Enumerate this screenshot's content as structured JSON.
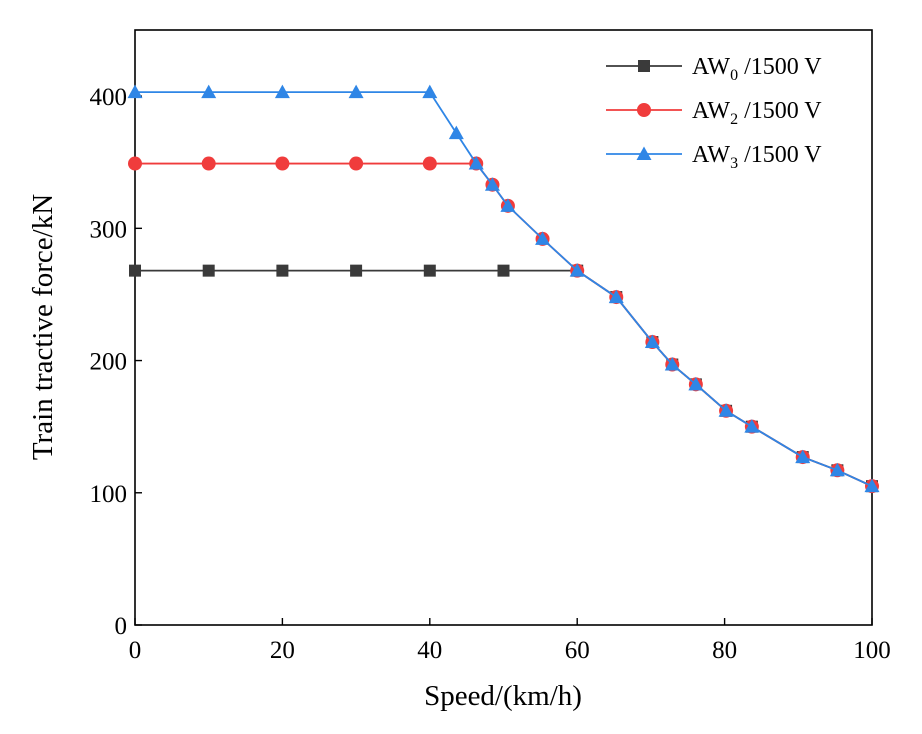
{
  "chart_data": {
    "type": "line",
    "title": "",
    "xlabel": "Speed/(km/h)",
    "ylabel": "Train tractive force/kN",
    "xlim": [
      0,
      100
    ],
    "ylim": [
      0,
      450
    ],
    "xticks": [
      0,
      20,
      40,
      60,
      80,
      100
    ],
    "yticks": [
      0,
      100,
      200,
      300,
      400
    ],
    "grid": false,
    "legend_position": "top-right",
    "series": [
      {
        "name": "AW0 /1500 V",
        "legend": {
          "base": "AW",
          "sub": "0",
          "suffix": " /1500 V"
        },
        "color": "#3a3a3a",
        "marker": "square",
        "x": [
          0,
          10,
          20,
          30,
          40,
          50,
          60,
          65.3,
          70.2,
          72.9,
          76.1,
          80.2,
          83.7,
          90.6,
          95.3,
          100
        ],
        "y": [
          268,
          268,
          268,
          268,
          268,
          268,
          268,
          248,
          214,
          197,
          182,
          162,
          150,
          127,
          117,
          105
        ]
      },
      {
        "name": "AW2 /1500 V",
        "legend": {
          "base": "AW",
          "sub": "2",
          "suffix": " /1500 V"
        },
        "color": "#f03c3c",
        "marker": "circle",
        "x": [
          0,
          10,
          20,
          30,
          40,
          46.3,
          48.5,
          50.6,
          55.3,
          60,
          65.3,
          70.2,
          72.9,
          76.1,
          80.2,
          83.7,
          90.6,
          95.3,
          100
        ],
        "y": [
          349,
          349,
          349,
          349,
          349,
          349,
          333,
          317,
          292,
          268,
          248,
          214,
          197,
          182,
          162,
          150,
          127,
          117,
          105
        ]
      },
      {
        "name": "AW3 /1500 V",
        "legend": {
          "base": "AW",
          "sub": "3",
          "suffix": " /1500 V"
        },
        "color": "#2f86e6",
        "marker": "triangle",
        "x": [
          0,
          10,
          20,
          30,
          40,
          43.6,
          46.3,
          48.5,
          50.6,
          55.3,
          60,
          65.3,
          70.2,
          72.9,
          76.1,
          80.2,
          83.7,
          90.6,
          95.3,
          100
        ],
        "y": [
          403,
          403,
          403,
          403,
          403,
          372,
          349,
          333,
          317,
          292,
          268,
          248,
          214,
          197,
          182,
          162,
          150,
          127,
          117,
          105
        ]
      }
    ]
  }
}
